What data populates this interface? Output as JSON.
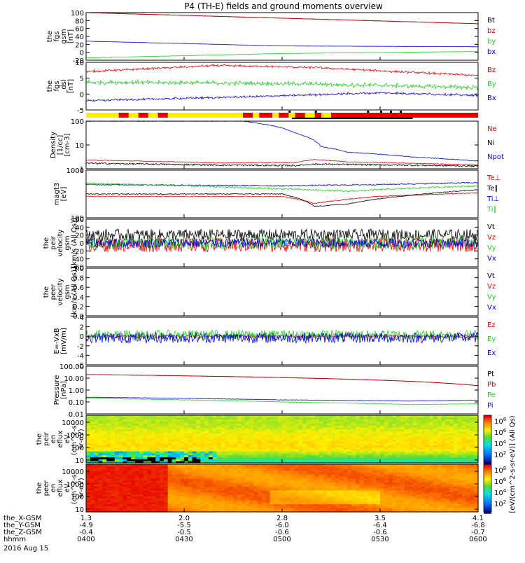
{
  "title": "P4 (TH-E) fields and ground moments overview",
  "date_label": "2016 Aug 15",
  "colors": {
    "black": "#000000",
    "red": "#e00000",
    "green": "#22cc22",
    "blue": "#0000cc",
    "yellow": "#ffee00",
    "bright_green": "#00cc00"
  },
  "x_axis": {
    "row_labels": [
      "the_X-GSM",
      "the_Y-GSM",
      "the_Z-GSM",
      "hhmm"
    ],
    "ticks": [
      {
        "t": 0,
        "vals": [
          "1.3",
          "-4.9",
          "-0.4",
          "0400"
        ]
      },
      {
        "t": 30,
        "vals": [
          "2.0",
          "-5.5",
          "-0.5",
          "0430"
        ]
      },
      {
        "t": 60,
        "vals": [
          "2.8",
          "-6.0",
          "-0.6",
          "0500"
        ]
      },
      {
        "t": 90,
        "vals": [
          "3.5",
          "-6.4",
          "-0.6",
          "0530"
        ]
      },
      {
        "t": 120,
        "vals": [
          "4.1",
          "-6.8",
          "-0.7",
          "0600"
        ]
      }
    ],
    "range_minutes": [
      0,
      120
    ]
  },
  "chart_data": [
    {
      "id": "fgs",
      "type": "line",
      "ylabel": [
        "the",
        "fgs",
        "gsm",
        "[nT]"
      ],
      "yticks": [
        "100",
        "80",
        "60",
        "40",
        "20",
        "0",
        "-20"
      ],
      "ylim": [
        -20,
        100
      ],
      "series": [
        {
          "name": "Bt",
          "color": "black",
          "trend": [
            [
              0,
              100
            ],
            [
              120,
              72
            ]
          ],
          "noise": 0.3
        },
        {
          "name": "bz",
          "color": "red",
          "trend": [
            [
              0,
              100
            ],
            [
              120,
              72
            ]
          ],
          "noise": 0.3
        },
        {
          "name": "by",
          "color": "green",
          "trend": [
            [
              0,
              -14
            ],
            [
              60,
              -3
            ],
            [
              120,
              2
            ]
          ],
          "noise": 0.3
        },
        {
          "name": "bx",
          "color": "blue",
          "trend": [
            [
              0,
              28
            ],
            [
              60,
              16
            ],
            [
              120,
              14
            ]
          ],
          "noise": 0.3
        }
      ]
    },
    {
      "id": "fgs_dsl",
      "type": "line",
      "ylabel": [
        "the",
        "fgs",
        "_dsl",
        "[nT]"
      ],
      "yticks": [
        "10",
        "5",
        "0",
        "-5"
      ],
      "ylim": [
        -7,
        11
      ],
      "series": [
        {
          "name": "Bz",
          "color": "red",
          "trend": [
            [
              0,
              7.5
            ],
            [
              40,
              9.8
            ],
            [
              70,
              9
            ],
            [
              120,
              6
            ]
          ],
          "noise": 0.5
        },
        {
          "name": "By",
          "color": "green",
          "trend": [
            [
              0,
              3.5
            ],
            [
              60,
              3
            ],
            [
              120,
              1.5
            ]
          ],
          "noise": 1.0
        },
        {
          "name": "Bx",
          "color": "blue",
          "trend": [
            [
              0,
              -3.5
            ],
            [
              50,
              -2
            ],
            [
              90,
              -0.5
            ],
            [
              120,
              -1.5
            ]
          ],
          "noise": 0.5
        }
      ]
    },
    {
      "id": "density",
      "type": "line",
      "ylabel": [
        "Density",
        "[1/cc]",
        "[cm-3]"
      ],
      "yticks": [
        "100",
        "10",
        "1"
      ],
      "ylim": [
        0.5,
        200
      ],
      "log": true,
      "series": [
        {
          "name": "Ne",
          "color": "red",
          "trend": [
            [
              0,
              1.5
            ],
            [
              40,
              1.05
            ],
            [
              64,
              1.1
            ],
            [
              70,
              1.6
            ],
            [
              80,
              1.2
            ],
            [
              120,
              0.8
            ]
          ],
          "noise": 0.02
        },
        {
          "name": "Ni",
          "color": "black",
          "trend": [
            [
              0,
              1
            ],
            [
              40,
              0.8
            ],
            [
              64,
              0.75
            ],
            [
              70,
              0.9
            ],
            [
              120,
              0.7
            ]
          ],
          "noise": 0.05
        },
        {
          "name": "Npot",
          "color": "blue",
          "trend": [
            [
              48,
              200
            ],
            [
              64,
              45
            ],
            [
              67,
              30
            ],
            [
              72,
              8
            ],
            [
              80,
              4
            ],
            [
              100,
              2.2
            ],
            [
              120,
              1.3
            ]
          ],
          "noise": 0.02
        }
      ]
    },
    {
      "id": "temp",
      "type": "line",
      "ylabel": [
        "magt3",
        "[eV]"
      ],
      "yticks": [
        "1000",
        "100"
      ],
      "ylim": [
        100,
        10000
      ],
      "log": true,
      "series": [
        {
          "name": "Te⊥",
          "color": "red",
          "trend": [
            [
              0,
              800
            ],
            [
              60,
              780
            ],
            [
              70,
              400
            ],
            [
              90,
              800
            ],
            [
              120,
              1100
            ]
          ],
          "noise": 0.02
        },
        {
          "name": "Te∥",
          "color": "black",
          "trend": [
            [
              0,
              1000
            ],
            [
              60,
              1000
            ],
            [
              70,
              300
            ],
            [
              80,
              380
            ],
            [
              100,
              900
            ],
            [
              120,
              1500
            ]
          ],
          "noise": 0.02
        },
        {
          "name": "Ti⊥",
          "color": "blue",
          "trend": [
            [
              0,
              2500
            ],
            [
              60,
              2200
            ],
            [
              90,
              2500
            ],
            [
              120,
              3000
            ]
          ],
          "noise": 0.03
        },
        {
          "name": "Ti∥",
          "color": "green",
          "trend": [
            [
              0,
              2800
            ],
            [
              50,
              1800
            ],
            [
              80,
              1300
            ],
            [
              120,
              2200
            ]
          ],
          "noise": 0.04
        }
      ]
    },
    {
      "id": "peir_vel",
      "type": "line",
      "ylabel": [
        "the",
        "peir",
        "velocity",
        "gsm",
        "[km/s (All Qs)]"
      ],
      "yticks": [
        "60",
        "40",
        "20",
        "0",
        "-20",
        "-40",
        "-60"
      ],
      "ylim": [
        -60,
        60
      ],
      "series": [
        {
          "name": "Vt",
          "color": "black",
          "trend": [
            [
              0,
              20
            ],
            [
              120,
              20
            ]
          ],
          "noise": 15
        },
        {
          "name": "Vz",
          "color": "red",
          "trend": [
            [
              0,
              -5
            ],
            [
              120,
              -5
            ]
          ],
          "noise": 18
        },
        {
          "name": "Vy",
          "color": "green",
          "trend": [
            [
              0,
              0
            ],
            [
              120,
              0
            ]
          ],
          "noise": 15
        },
        {
          "name": "Vx",
          "color": "blue",
          "trend": [
            [
              0,
              0
            ],
            [
              120,
              0
            ]
          ],
          "noise": 12
        }
      ]
    },
    {
      "id": "peer_vel",
      "type": "line",
      "ylabel": [
        "the",
        "peer",
        "velocity",
        "gsm",
        "[km/s (All Qs)]"
      ],
      "yticks": [
        "1.0",
        "0.8",
        "0.6",
        "0.4",
        "0.2",
        "0.0"
      ],
      "ylim": [
        0,
        1
      ],
      "series": [
        {
          "name": "Vt",
          "color": "black",
          "trend": [],
          "noise": 0
        },
        {
          "name": "Vz",
          "color": "red",
          "trend": [],
          "noise": 0
        },
        {
          "name": "Vy",
          "color": "green",
          "trend": [],
          "noise": 0
        },
        {
          "name": "Vx",
          "color": "blue",
          "trend": [],
          "noise": 0
        }
      ]
    },
    {
      "id": "efield",
      "type": "line",
      "ylabel": [
        "E=-VxB",
        "[mV/m]"
      ],
      "yticks": [
        "4",
        "2",
        "0",
        "-2",
        "-4",
        "-6"
      ],
      "ylim": [
        -6,
        4
      ],
      "series": [
        {
          "name": "Ez",
          "color": "red",
          "trend": [
            [
              0,
              0
            ],
            [
              120,
              0
            ]
          ],
          "noise": 0.3
        },
        {
          "name": "Ey",
          "color": "green",
          "trend": [
            [
              0,
              0.3
            ],
            [
              120,
              0.3
            ]
          ],
          "noise": 1.0
        },
        {
          "name": "Ex",
          "color": "blue",
          "trend": [
            [
              0,
              -0.3
            ],
            [
              120,
              -0.3
            ]
          ],
          "noise": 1.1
        }
      ]
    },
    {
      "id": "pressure",
      "type": "line",
      "ylabel": [
        "Pressure",
        "[nPa]"
      ],
      "yticks": [
        "100.00",
        "10.00",
        "1.00",
        "0.10",
        "0.01"
      ],
      "ylim": [
        0.01,
        100
      ],
      "log": true,
      "series": [
        {
          "name": "Pt",
          "color": "black",
          "trend": [
            [
              0,
              20
            ],
            [
              120,
              2.3
            ]
          ],
          "noise": 0.01
        },
        {
          "name": "Pb",
          "color": "red",
          "trend": [
            [
              0,
              20
            ],
            [
              120,
              2.3
            ]
          ],
          "noise": 0.01
        },
        {
          "name": "Pe",
          "color": "green",
          "trend": [
            [
              0,
              0.2
            ],
            [
              60,
              0.1
            ],
            [
              100,
              0.06
            ],
            [
              120,
              0.07
            ]
          ],
          "noise": 0.02
        },
        {
          "name": "Pi",
          "color": "blue",
          "trend": [
            [
              0,
              0.25
            ],
            [
              60,
              0.15
            ],
            [
              100,
              0.12
            ],
            [
              120,
              0.14
            ]
          ],
          "noise": 0.02
        }
      ]
    },
    {
      "id": "peir_spec",
      "type": "heatmap",
      "ylabel": [
        "the",
        "peir",
        "en",
        "eflux",
        "eV",
        "(cm^2-s-",
        "sr-eV)"
      ],
      "yticks": [
        "10000",
        "1000",
        "100",
        "10"
      ],
      "ylim": [
        10,
        30000
      ],
      "log": true,
      "colorbar": {
        "ticks": [
          "10^8",
          "10^6",
          "10^4",
          "10^2"
        ]
      }
    },
    {
      "id": "peer_spec",
      "type": "heatmap",
      "ylabel": [
        "the",
        "peer",
        "en",
        "eflux",
        "eV",
        "(cm^2-s-",
        "sr-eV)"
      ],
      "yticks": [
        "10000",
        "1000",
        "100",
        "10"
      ],
      "ylim": [
        10,
        30000
      ],
      "log": true,
      "colorbar": {
        "ticks": [
          "10^8",
          "10^6",
          "10^4",
          "10^2"
        ]
      }
    }
  ],
  "colorbar_label": "[eV/(cm^2-s-sr-eV)] (All Qs)"
}
